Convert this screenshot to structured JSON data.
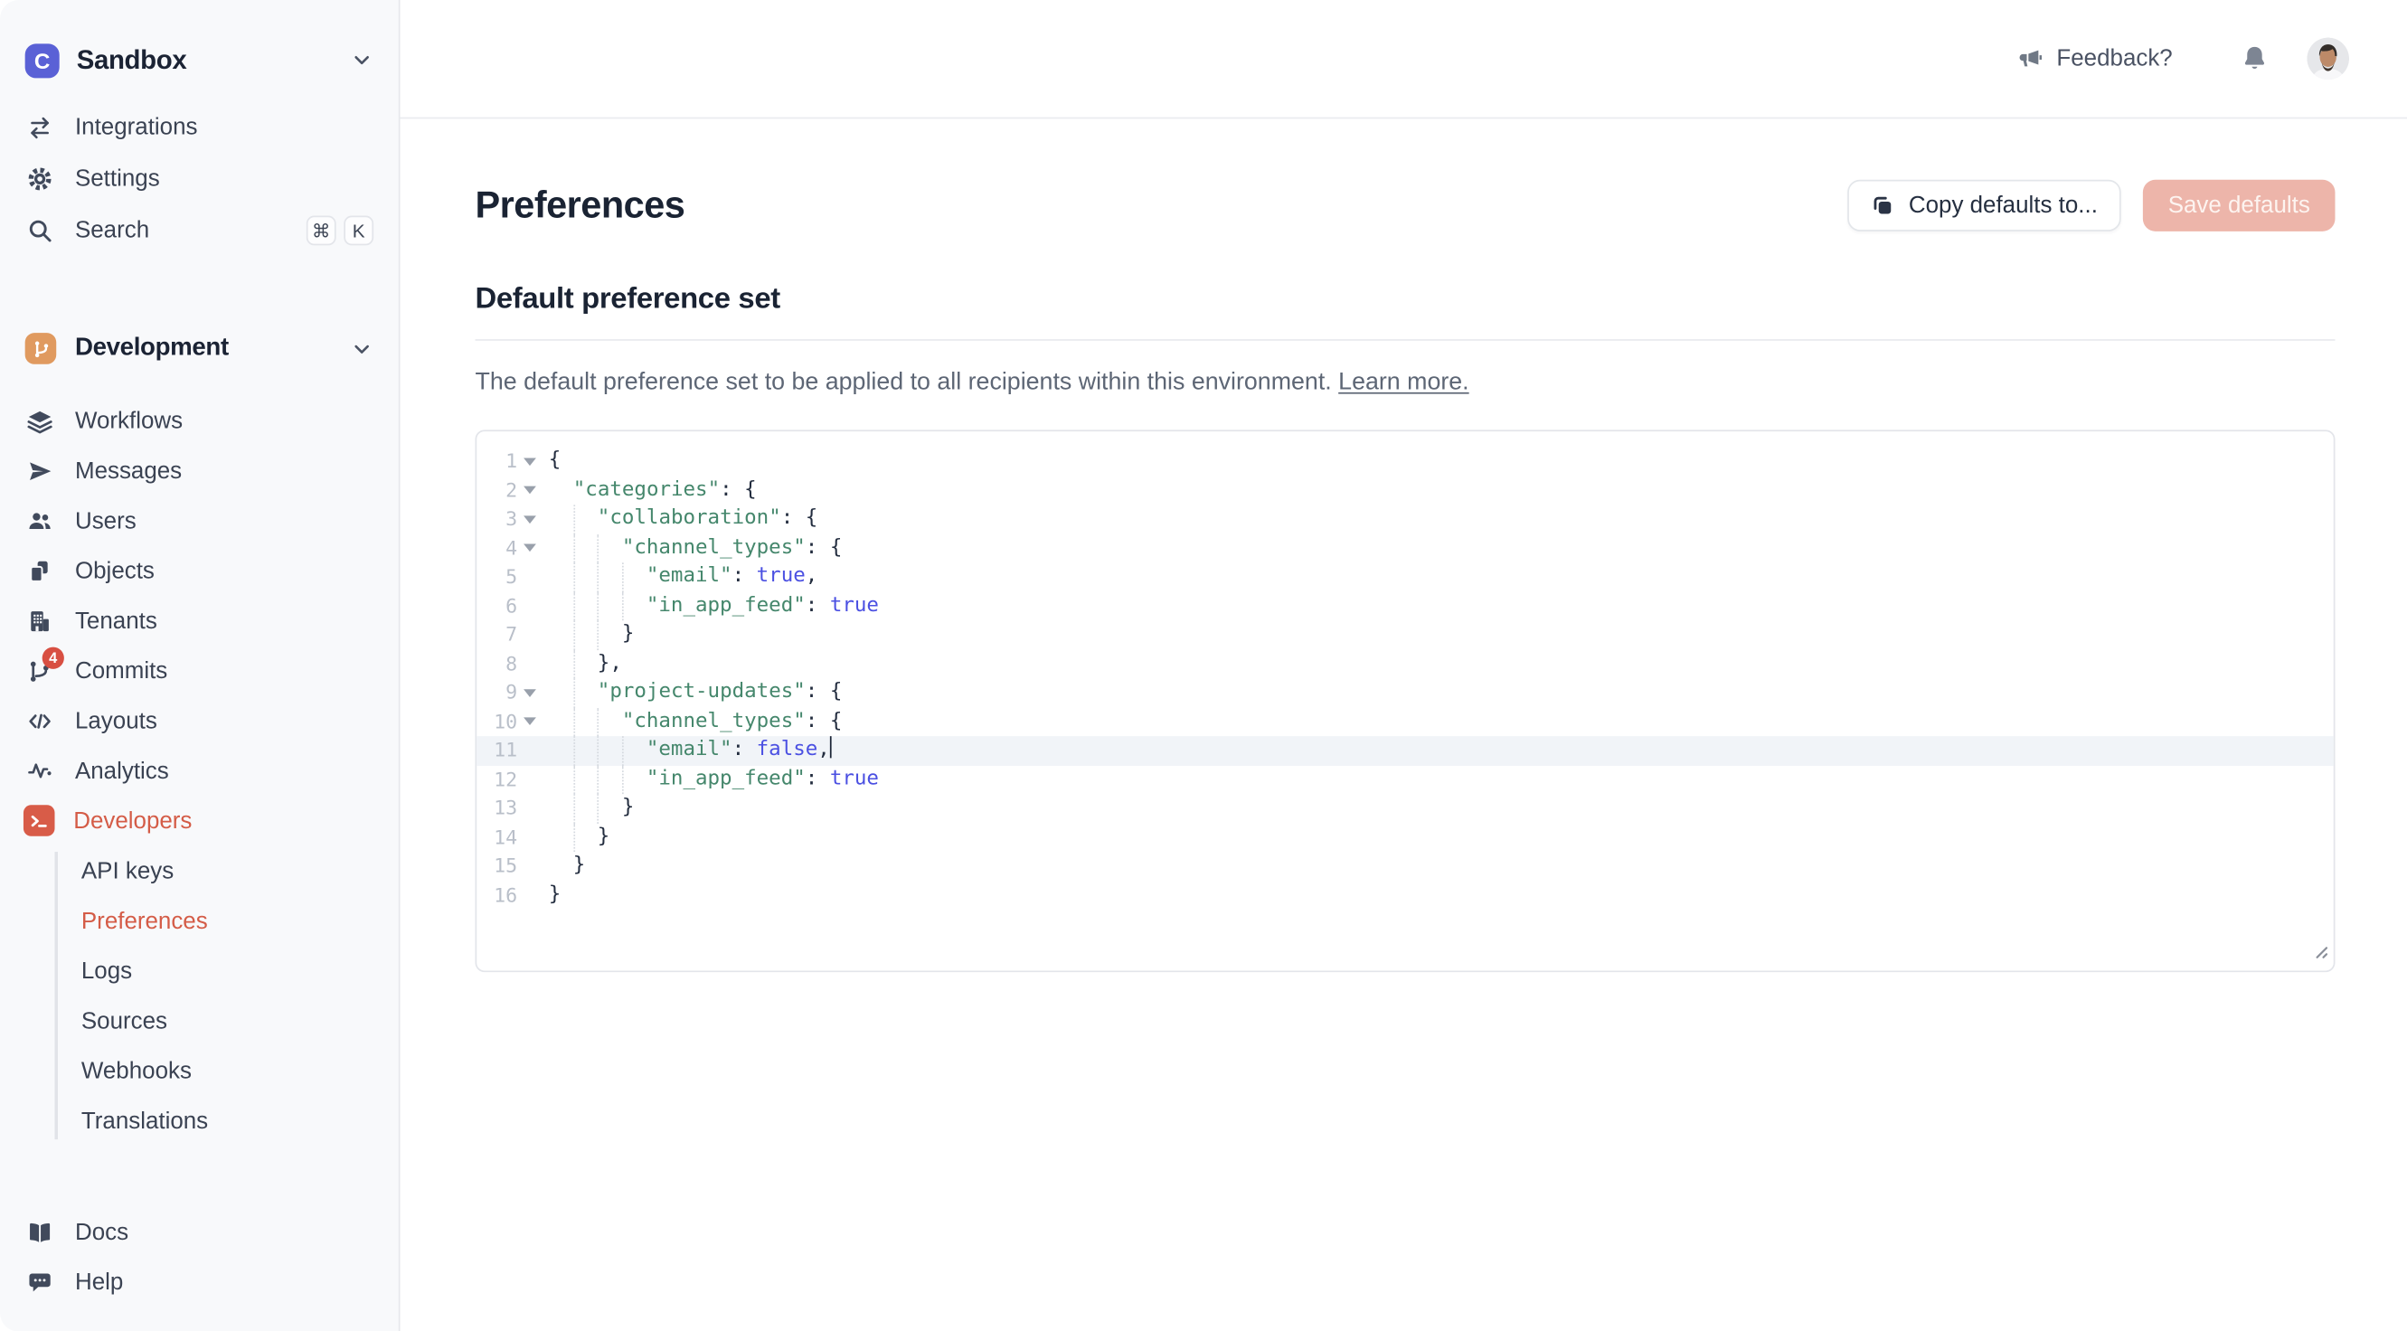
{
  "workspace": {
    "name": "Sandbox",
    "logo_letter": "C",
    "logo_color": "#5a61d6"
  },
  "sidebar": {
    "top_items": [
      {
        "label": "Integrations",
        "icon": "swap-arrows-icon"
      },
      {
        "label": "Settings",
        "icon": "gear-icon"
      },
      {
        "label": "Search",
        "icon": "search-icon",
        "shortcut": [
          "⌘",
          "K"
        ]
      }
    ],
    "environment": {
      "name": "Development",
      "icon": "git-branch-icon",
      "color": "#e09a5f"
    },
    "env_items": [
      {
        "label": "Workflows",
        "icon": "layers-icon"
      },
      {
        "label": "Messages",
        "icon": "paper-plane-icon"
      },
      {
        "label": "Users",
        "icon": "users-icon"
      },
      {
        "label": "Objects",
        "icon": "documents-icon"
      },
      {
        "label": "Tenants",
        "icon": "building-icon"
      },
      {
        "label": "Commits",
        "icon": "git-commits-icon",
        "badge": "4"
      },
      {
        "label": "Layouts",
        "icon": "code-brackets-icon"
      },
      {
        "label": "Analytics",
        "icon": "pulse-icon"
      },
      {
        "label": "Developers",
        "icon": "terminal-icon",
        "active": true
      }
    ],
    "developer_subitems": [
      {
        "label": "API keys"
      },
      {
        "label": "Preferences",
        "active": true
      },
      {
        "label": "Logs"
      },
      {
        "label": "Sources"
      },
      {
        "label": "Webhooks"
      },
      {
        "label": "Translations"
      }
    ],
    "bottom_items": [
      {
        "label": "Docs",
        "icon": "open-book-icon"
      },
      {
        "label": "Help",
        "icon": "chat-bubble-icon"
      }
    ]
  },
  "topbar": {
    "feedback": "Feedback?"
  },
  "page": {
    "title": "Preferences",
    "buttons": {
      "copy": "Copy defaults to...",
      "save": "Save defaults"
    },
    "section": {
      "title": "Default preference set",
      "description": "The default preference set to be applied to all recipients within this environment.",
      "learn_more": "Learn more."
    }
  },
  "editor": {
    "active_line": 11,
    "lines": [
      {
        "n": 1,
        "fold": true,
        "ind": 0,
        "t": [
          [
            "p",
            "{"
          ]
        ]
      },
      {
        "n": 2,
        "fold": true,
        "ind": 1,
        "t": [
          [
            "k",
            "\"categories\""
          ],
          [
            "p",
            ": {"
          ]
        ]
      },
      {
        "n": 3,
        "fold": true,
        "ind": 2,
        "t": [
          [
            "k",
            "\"collaboration\""
          ],
          [
            "p",
            ": {"
          ]
        ]
      },
      {
        "n": 4,
        "fold": true,
        "ind": 3,
        "t": [
          [
            "k",
            "\"channel_types\""
          ],
          [
            "p",
            ": {"
          ]
        ]
      },
      {
        "n": 5,
        "fold": false,
        "ind": 4,
        "t": [
          [
            "k",
            "\"email\""
          ],
          [
            "p",
            ": "
          ],
          [
            "b",
            "true"
          ],
          [
            "p",
            ","
          ]
        ]
      },
      {
        "n": 6,
        "fold": false,
        "ind": 4,
        "t": [
          [
            "k",
            "\"in_app_feed\""
          ],
          [
            "p",
            ": "
          ],
          [
            "b",
            "true"
          ]
        ]
      },
      {
        "n": 7,
        "fold": false,
        "ind": 3,
        "t": [
          [
            "p",
            "}"
          ]
        ]
      },
      {
        "n": 8,
        "fold": false,
        "ind": 2,
        "t": [
          [
            "p",
            "},"
          ]
        ]
      },
      {
        "n": 9,
        "fold": true,
        "ind": 2,
        "t": [
          [
            "k",
            "\"project-updates\""
          ],
          [
            "p",
            ": {"
          ]
        ]
      },
      {
        "n": 10,
        "fold": true,
        "ind": 3,
        "t": [
          [
            "k",
            "\"channel_types\""
          ],
          [
            "p",
            ": {"
          ]
        ]
      },
      {
        "n": 11,
        "fold": false,
        "ind": 4,
        "active": true,
        "cursor": true,
        "t": [
          [
            "k",
            "\"email\""
          ],
          [
            "p",
            ": "
          ],
          [
            "b",
            "false"
          ],
          [
            "p",
            ","
          ]
        ]
      },
      {
        "n": 12,
        "fold": false,
        "ind": 4,
        "t": [
          [
            "k",
            "\"in_app_feed\""
          ],
          [
            "p",
            ": "
          ],
          [
            "b",
            "true"
          ]
        ]
      },
      {
        "n": 13,
        "fold": false,
        "ind": 3,
        "t": [
          [
            "p",
            "}"
          ]
        ]
      },
      {
        "n": 14,
        "fold": false,
        "ind": 2,
        "t": [
          [
            "p",
            "}"
          ]
        ]
      },
      {
        "n": 15,
        "fold": false,
        "ind": 1,
        "t": [
          [
            "p",
            "}"
          ]
        ]
      },
      {
        "n": 16,
        "fold": false,
        "ind": 0,
        "t": [
          [
            "p",
            "}"
          ]
        ]
      }
    ]
  },
  "colors": {
    "accent_orange": "#d45c47",
    "environment_orange": "#e09a5f",
    "logo_indigo": "#5a61d6",
    "badge_red": "#d84f42",
    "save_disabled_bg": "#edb5aa",
    "code_key_green": "#45876c",
    "code_bool_blue": "#4b50e2",
    "sidebar_bg": "#f8f9fb"
  }
}
